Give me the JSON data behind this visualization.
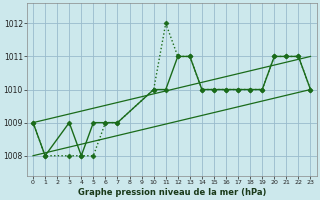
{
  "background_color": "#cce8ec",
  "grid_color": "#99bbcc",
  "line_color": "#1a6b1a",
  "title": "Graphe pression niveau de la mer (hPa)",
  "xlim": [
    -0.5,
    23.5
  ],
  "ylim": [
    1007.4,
    1012.6
  ],
  "yticks": [
    1008,
    1009,
    1010,
    1011,
    1012
  ],
  "xticks": [
    0,
    1,
    2,
    3,
    4,
    5,
    6,
    7,
    8,
    9,
    10,
    11,
    12,
    13,
    14,
    15,
    16,
    17,
    18,
    19,
    20,
    21,
    22,
    23
  ],
  "series": [
    {
      "x": [
        0,
        1,
        3,
        4,
        5,
        6,
        7,
        10,
        11,
        12,
        13,
        14,
        15,
        16,
        17,
        18,
        19,
        20,
        21,
        22,
        23
      ],
      "y": [
        1009.0,
        1008.0,
        1009.0,
        1008.0,
        1009.0,
        1009.0,
        1009.0,
        1010.0,
        1010.0,
        1011.0,
        1011.0,
        1010.0,
        1010.0,
        1010.0,
        1010.0,
        1010.0,
        1010.0,
        1011.0,
        1011.0,
        1011.0,
        1010.0
      ],
      "style": "solid",
      "marker": "D",
      "markersize": 2.5,
      "linewidth": 1.0
    },
    {
      "x": [
        0,
        1,
        3,
        4,
        5,
        6,
        7,
        10,
        11,
        12,
        13,
        14,
        15,
        16,
        17,
        18,
        19,
        20,
        21,
        22,
        23
      ],
      "y": [
        1009.0,
        1008.0,
        1008.0,
        1008.0,
        1008.0,
        1009.0,
        1009.0,
        1010.0,
        1012.0,
        1011.0,
        1011.0,
        1010.0,
        1010.0,
        1010.0,
        1010.0,
        1010.0,
        1010.0,
        1011.0,
        1011.0,
        1011.0,
        1010.0
      ],
      "style": "dotted",
      "marker": "D",
      "markersize": 2.5,
      "linewidth": 1.0
    },
    {
      "x": [
        0,
        23
      ],
      "y": [
        1009.0,
        1011.0
      ],
      "style": "solid",
      "marker": null,
      "markersize": 0,
      "linewidth": 0.9
    },
    {
      "x": [
        0,
        23
      ],
      "y": [
        1008.0,
        1010.0
      ],
      "style": "solid",
      "marker": null,
      "markersize": 0,
      "linewidth": 0.9
    }
  ]
}
